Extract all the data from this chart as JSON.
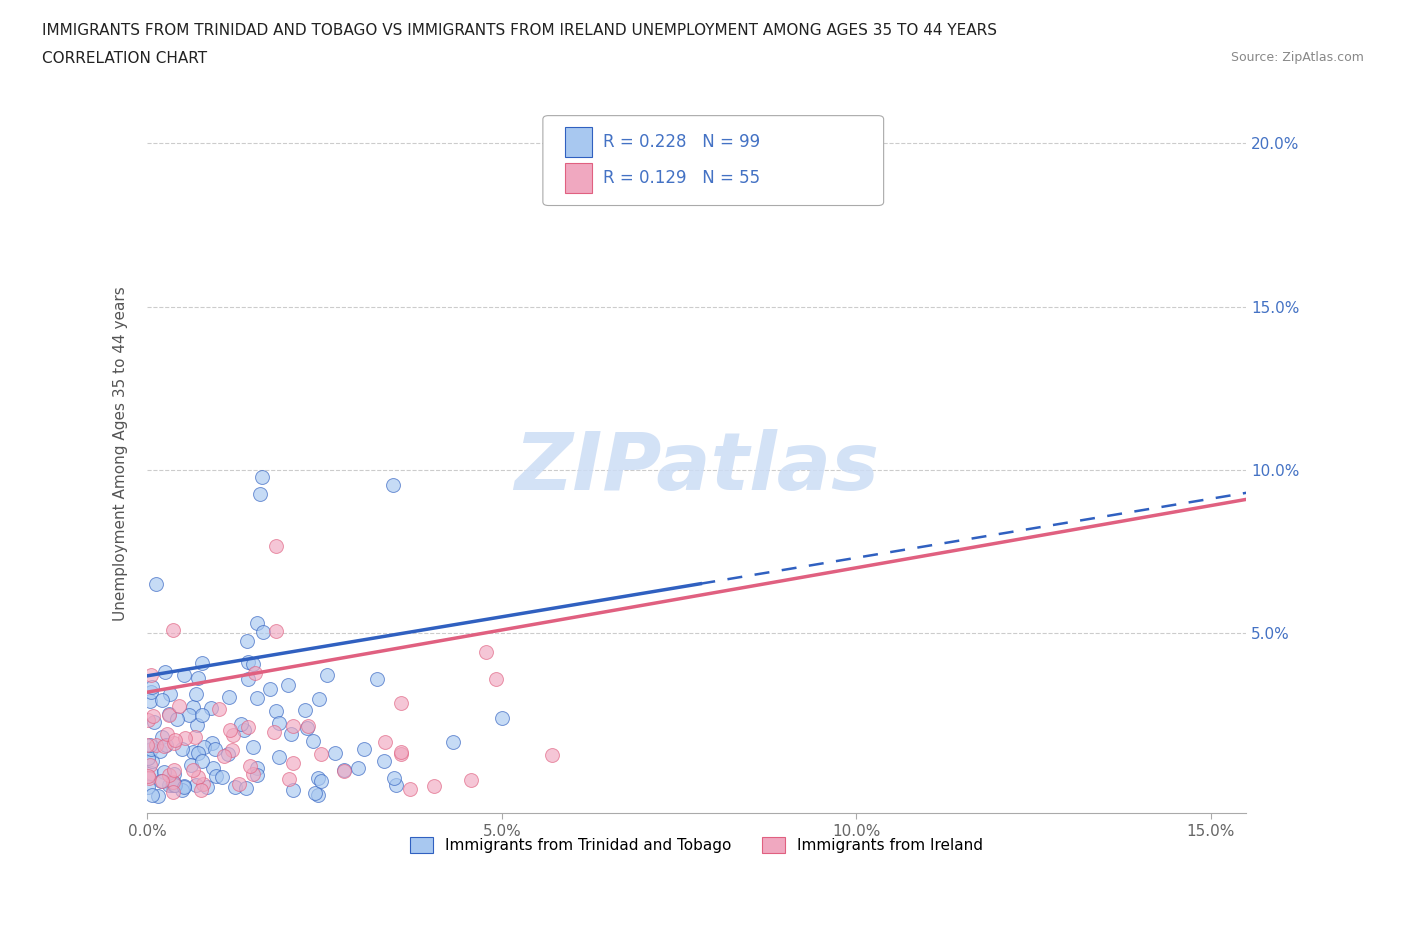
{
  "title_line1": "IMMIGRANTS FROM TRINIDAD AND TOBAGO VS IMMIGRANTS FROM IRELAND UNEMPLOYMENT AMONG AGES 35 TO 44 YEARS",
  "title_line2": "CORRELATION CHART",
  "source_text": "Source: ZipAtlas.com",
  "ylabel": "Unemployment Among Ages 35 to 44 years",
  "legend_label1": "Immigrants from Trinidad and Tobago",
  "legend_label2": "Immigrants from Ireland",
  "R1": 0.228,
  "N1": 99,
  "R2": 0.129,
  "N2": 55,
  "color1": "#a8c8f0",
  "color2": "#f0a8c0",
  "trendline1_color": "#3060c0",
  "trendline2_color": "#e06080",
  "xmin": 0.0,
  "xmax": 0.155,
  "ymin": -0.005,
  "ymax": 0.215,
  "x_ticks": [
    0.0,
    0.05,
    0.1,
    0.15
  ],
  "x_tick_labels": [
    "0.0%",
    "5.0%",
    "10.0%",
    "15.0%"
  ],
  "y_ticks": [
    0.05,
    0.1,
    0.15,
    0.2
  ],
  "y_tick_labels": [
    "5.0%",
    "10.0%",
    "15.0%",
    "20.0%"
  ],
  "watermark_color": "#ccddf5",
  "background_color": "#ffffff",
  "grid_color": "#cccccc",
  "trendline1_start_y": 0.037,
  "trendline1_end_y": 0.093,
  "trendline2_start_y": 0.032,
  "trendline2_end_y": 0.091,
  "trendline1_solid_end_x": 0.078,
  "trendline1_total_end_x": 0.155,
  "trendline2_end_x": 0.155
}
